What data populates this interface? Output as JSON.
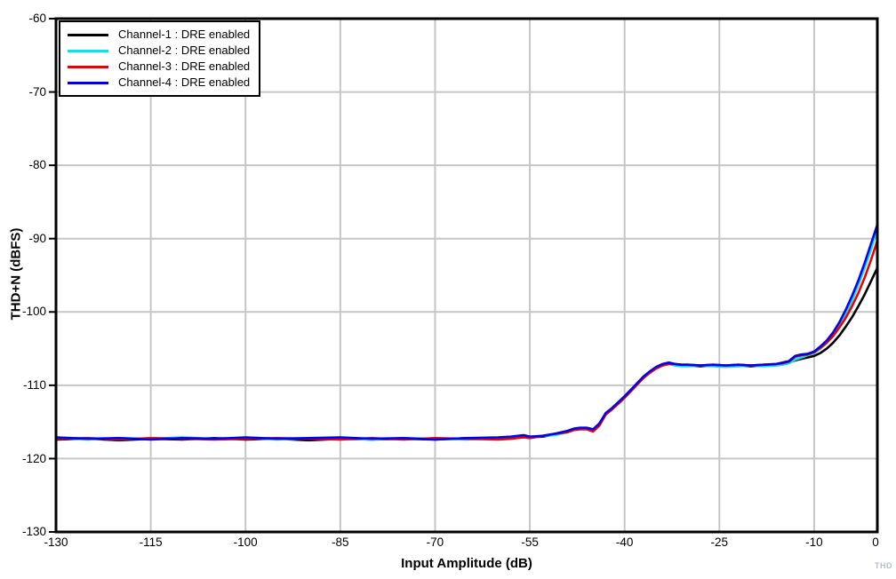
{
  "figure": {
    "watermark": "THD"
  },
  "chart_data": {
    "type": "line",
    "title": "",
    "xlabel": "Input Amplitude (dB)",
    "ylabel": "THD+N (dBFS)",
    "xlim": [
      -130,
      0
    ],
    "ylim": [
      -130,
      -60
    ],
    "grid": true,
    "grid_color": "#c6c6c6",
    "axis_color": "#000000",
    "legend_position": "top-left",
    "x_ticks": [
      -130,
      -115,
      -100,
      -85,
      -70,
      -55,
      -40,
      -25,
      -10,
      0
    ],
    "x_tick_labels": [
      "-130",
      "-115",
      "-100",
      "-85",
      "-70",
      "-55",
      "-40",
      "-25",
      "-10",
      "0"
    ],
    "y_ticks": [
      -60,
      -70,
      -80,
      -90,
      -100,
      -110,
      -120,
      -130
    ],
    "y_tick_labels": [
      "-60",
      "-70",
      "-80",
      "-90",
      "-100",
      "-110",
      "-120",
      "-130"
    ],
    "x": [
      -130,
      -125,
      -120,
      -115,
      -110,
      -105,
      -100,
      -95,
      -90,
      -85,
      -80,
      -75,
      -70,
      -65,
      -60,
      -58,
      -56,
      -55,
      -53,
      -51,
      -49,
      -48,
      -47,
      -46,
      -45,
      -44,
      -43,
      -42,
      -41,
      -40,
      -39,
      -38,
      -37,
      -36,
      -35,
      -34,
      -33,
      -32,
      -31,
      -30,
      -28,
      -26,
      -24,
      -22,
      -20,
      -18,
      -16,
      -15,
      -14,
      -13,
      -12,
      -11,
      -10,
      -9,
      -8,
      -7,
      -6,
      -5,
      -4,
      -3,
      -2,
      -1,
      0
    ],
    "series": [
      {
        "name": "Channel-1",
        "label": "Channel-1 : DRE enabled",
        "color": "#000000",
        "values": [
          -117.4,
          -117.3,
          -117.5,
          -117.3,
          -117.4,
          -117.2,
          -117.4,
          -117.3,
          -117.5,
          -117.3,
          -117.4,
          -117.3,
          -117.4,
          -117.2,
          -117.3,
          -117.2,
          -116.9,
          -117.1,
          -117.0,
          -116.7,
          -116.3,
          -116.0,
          -115.9,
          -115.9,
          -116.1,
          -115.3,
          -113.9,
          -113.2,
          -112.4,
          -111.6,
          -110.7,
          -109.8,
          -108.9,
          -108.2,
          -107.6,
          -107.2,
          -107.0,
          -107.2,
          -107.3,
          -107.3,
          -107.4,
          -107.3,
          -107.4,
          -107.3,
          -107.4,
          -107.3,
          -107.2,
          -107.1,
          -106.9,
          -106.6,
          -106.4,
          -106.2,
          -106.0,
          -105.6,
          -105.0,
          -104.2,
          -103.2,
          -102.0,
          -100.7,
          -99.2,
          -97.6,
          -95.8,
          -94.0
        ]
      },
      {
        "name": "Channel-2",
        "label": "Channel-2 : DRE enabled",
        "color": "#00e8e8",
        "values": [
          -117.2,
          -117.4,
          -117.2,
          -117.3,
          -117.1,
          -117.3,
          -117.2,
          -117.4,
          -117.2,
          -117.3,
          -117.4,
          -117.2,
          -117.3,
          -117.4,
          -117.2,
          -117.1,
          -117.0,
          -117.2,
          -116.9,
          -116.8,
          -116.4,
          -116.1,
          -115.8,
          -116.0,
          -116.2,
          -115.4,
          -114.0,
          -113.1,
          -112.5,
          -111.7,
          -110.8,
          -109.7,
          -109.0,
          -108.1,
          -107.7,
          -107.3,
          -107.1,
          -107.3,
          -107.4,
          -107.4,
          -107.3,
          -107.4,
          -107.5,
          -107.4,
          -107.3,
          -107.4,
          -107.3,
          -107.2,
          -107.0,
          -106.5,
          -106.2,
          -105.9,
          -105.6,
          -105.0,
          -104.2,
          -103.2,
          -101.9,
          -100.3,
          -98.4,
          -96.3,
          -94.0,
          -91.5,
          -88.7
        ]
      },
      {
        "name": "Channel-3",
        "label": "Channel-3 : DRE enabled",
        "color": "#ee0000",
        "values": [
          -117.3,
          -117.2,
          -117.4,
          -117.2,
          -117.3,
          -117.4,
          -117.3,
          -117.2,
          -117.3,
          -117.4,
          -117.2,
          -117.4,
          -117.2,
          -117.3,
          -117.4,
          -117.3,
          -117.1,
          -117.2,
          -116.9,
          -116.6,
          -116.4,
          -116.1,
          -116.0,
          -116.0,
          -116.3,
          -115.5,
          -114.0,
          -113.3,
          -112.5,
          -111.7,
          -110.8,
          -109.9,
          -109.0,
          -108.3,
          -107.7,
          -107.3,
          -107.1,
          -107.1,
          -107.2,
          -107.2,
          -107.3,
          -107.2,
          -107.3,
          -107.2,
          -107.3,
          -107.2,
          -107.1,
          -107.0,
          -106.8,
          -106.1,
          -105.9,
          -105.8,
          -105.5,
          -104.9,
          -104.2,
          -103.3,
          -102.1,
          -100.8,
          -99.2,
          -97.4,
          -95.3,
          -92.9,
          -90.3
        ]
      },
      {
        "name": "Channel-4",
        "label": "Channel-4 : DRE enabled",
        "color": "#0000ee",
        "values": [
          -117.1,
          -117.3,
          -117.2,
          -117.4,
          -117.2,
          -117.3,
          -117.1,
          -117.3,
          -117.2,
          -117.1,
          -117.3,
          -117.2,
          -117.4,
          -117.2,
          -117.1,
          -117.0,
          -116.8,
          -117.0,
          -116.9,
          -116.6,
          -116.2,
          -115.9,
          -115.8,
          -115.8,
          -116.0,
          -115.2,
          -113.8,
          -113.1,
          -112.3,
          -111.5,
          -110.6,
          -109.7,
          -108.8,
          -108.1,
          -107.5,
          -107.1,
          -106.9,
          -107.1,
          -107.2,
          -107.2,
          -107.3,
          -107.2,
          -107.3,
          -107.2,
          -107.3,
          -107.2,
          -107.1,
          -106.9,
          -106.7,
          -106.0,
          -105.8,
          -105.7,
          -105.4,
          -104.7,
          -103.9,
          -102.8,
          -101.4,
          -99.7,
          -97.8,
          -95.7,
          -93.3,
          -90.7,
          -88.1
        ]
      }
    ]
  }
}
